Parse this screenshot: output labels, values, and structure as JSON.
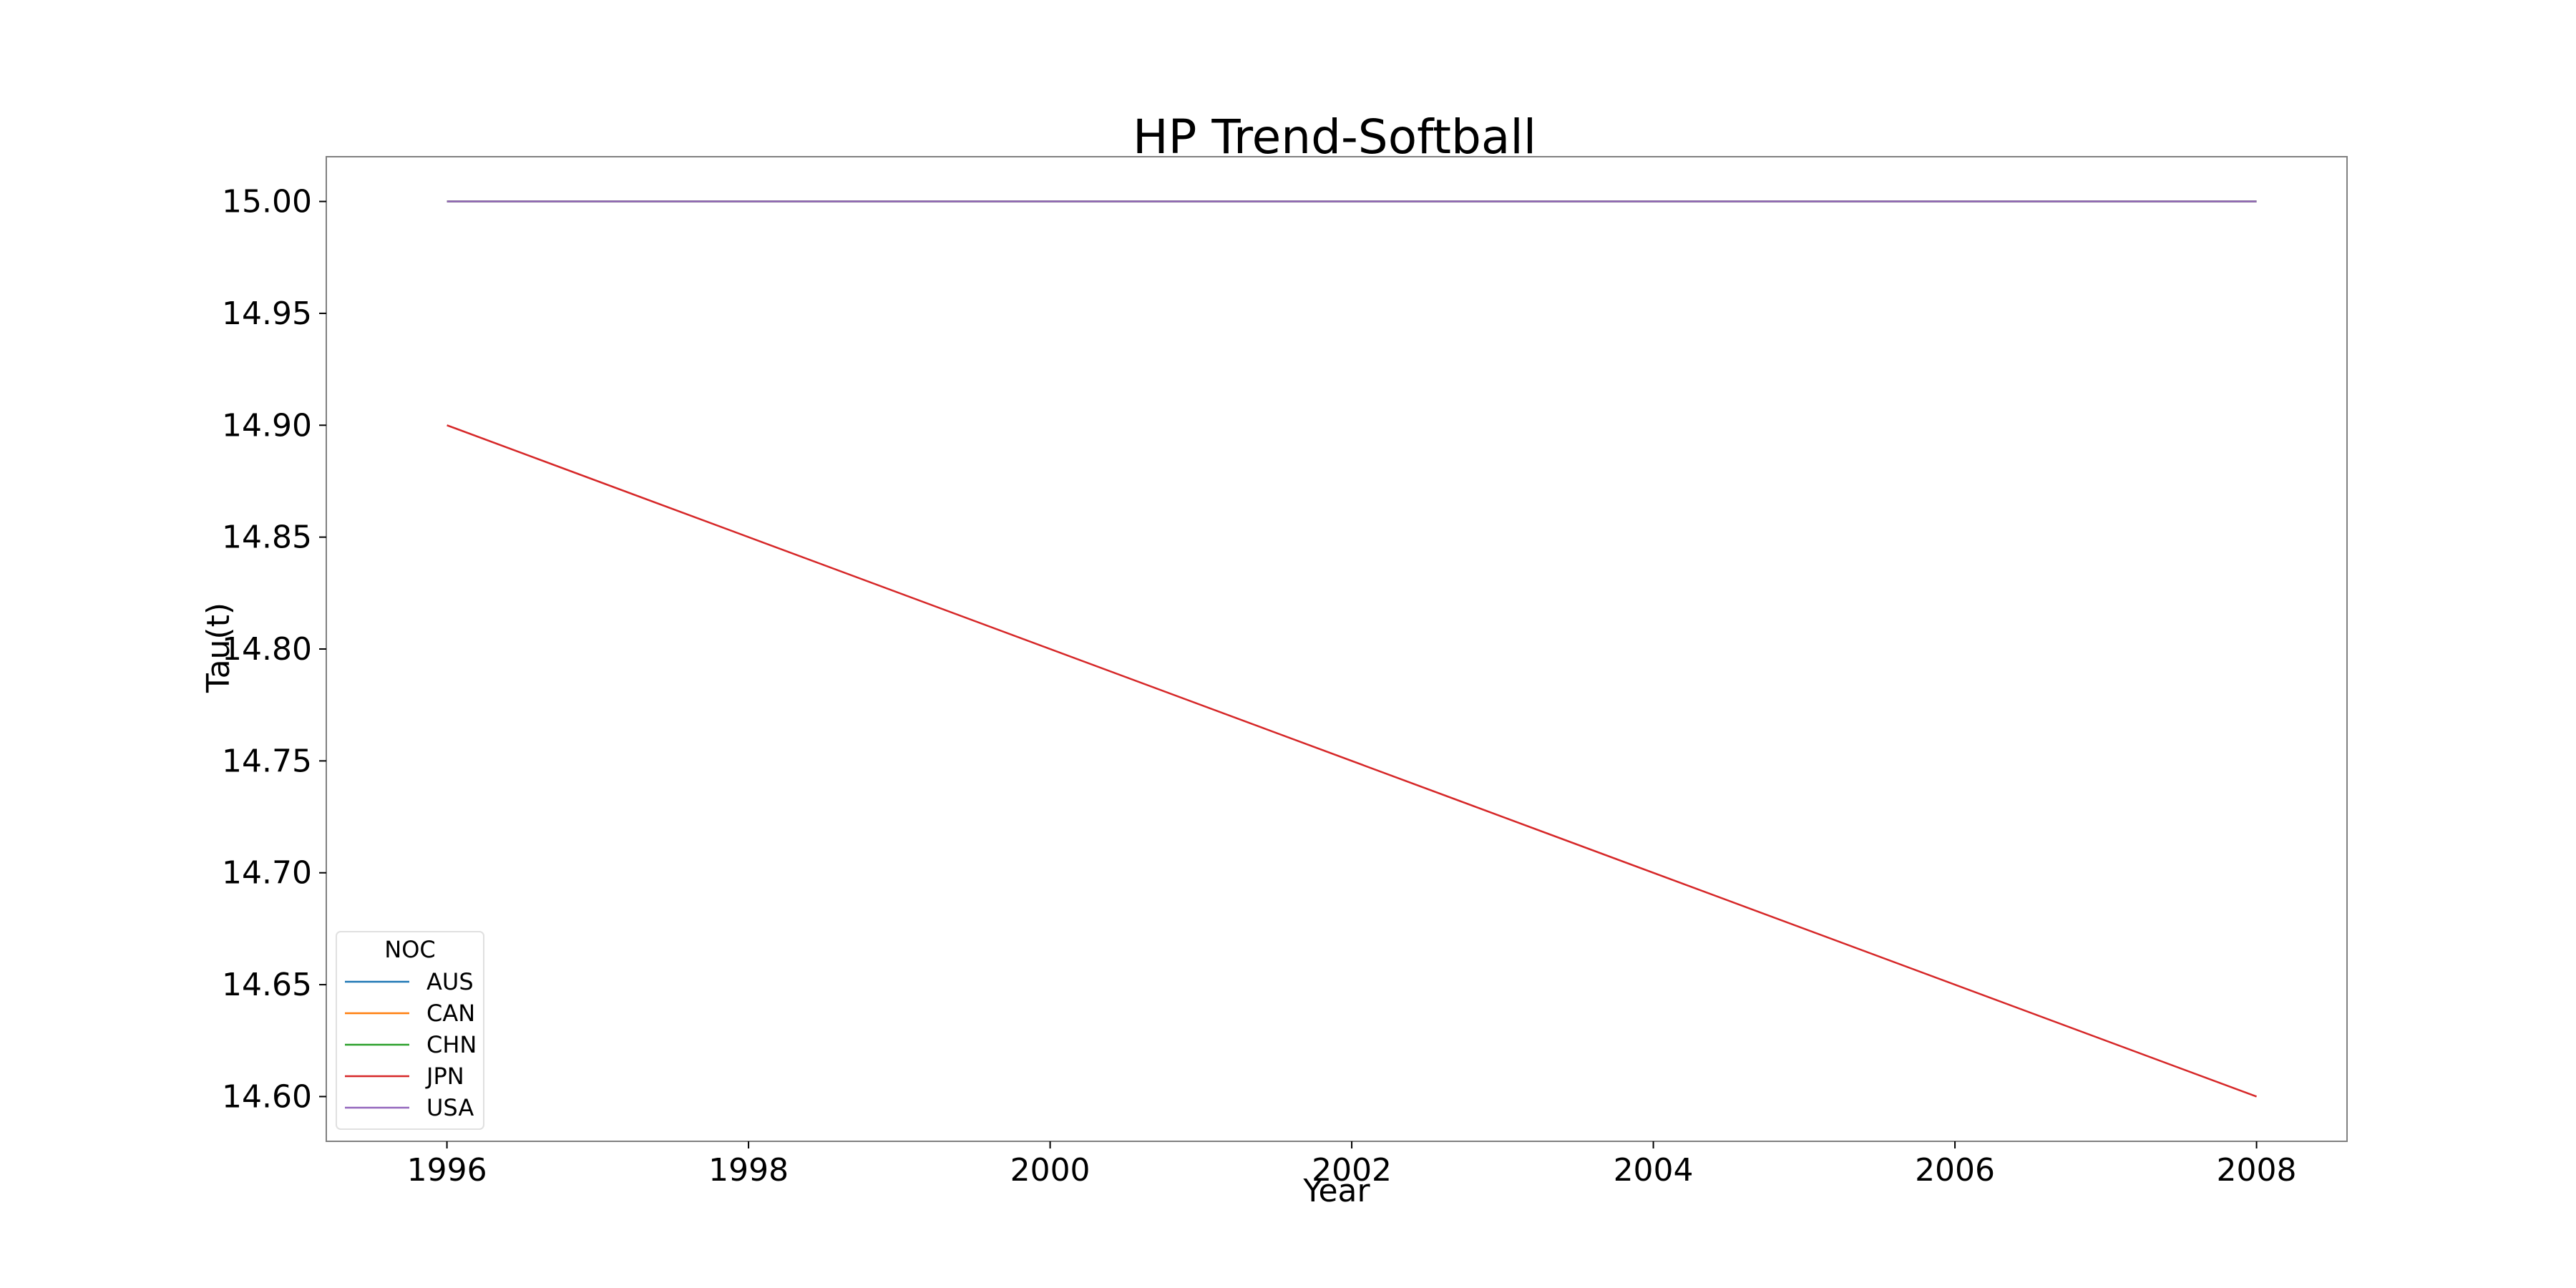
{
  "chart_data": {
    "type": "line",
    "title": "HP Trend-Softball",
    "xlabel": "Year",
    "ylabel": "Tau(t)",
    "x": [
      1996,
      2008
    ],
    "xlim": [
      1995.2,
      2008.6
    ],
    "ylim": [
      14.58,
      15.02
    ],
    "xticks": [
      "1996",
      "1998",
      "2000",
      "2002",
      "2004",
      "2006",
      "2008"
    ],
    "yticks": [
      "14.60",
      "14.65",
      "14.70",
      "14.75",
      "14.80",
      "14.85",
      "14.90",
      "14.95",
      "15.00"
    ],
    "grid": false,
    "legend": {
      "title": "NOC",
      "placement": "lower-left"
    },
    "series": [
      {
        "name": "AUS",
        "color": "#1f77b4",
        "values": [
          15.0,
          15.0
        ]
      },
      {
        "name": "CAN",
        "color": "#ff7f0e",
        "values": [
          15.0,
          15.0
        ]
      },
      {
        "name": "CHN",
        "color": "#2ca02c",
        "values": [
          15.0,
          15.0
        ]
      },
      {
        "name": "JPN",
        "color": "#d62728",
        "values": [
          14.9,
          14.6
        ]
      },
      {
        "name": "USA",
        "color": "#9467bd",
        "values": [
          15.0,
          15.0
        ]
      }
    ]
  }
}
